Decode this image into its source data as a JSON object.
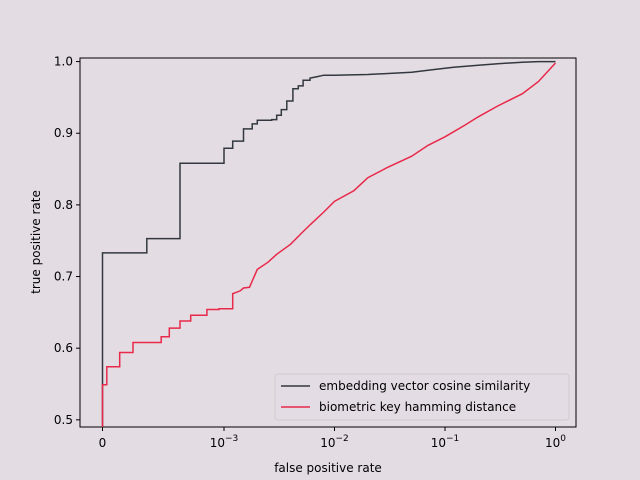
{
  "chart_data": {
    "type": "line",
    "title": "",
    "xlabel": "false positive rate",
    "ylabel": "true positive rate",
    "xscale": "symlog",
    "xlim": [
      -3e-05,
      1.7
    ],
    "ylim": [
      0.49,
      1.005
    ],
    "x_ticks": [
      {
        "value": 0,
        "label": "0"
      },
      {
        "value": 0.001,
        "label": "10",
        "exp": "−3"
      },
      {
        "value": 0.01,
        "label": "10",
        "exp": "−2"
      },
      {
        "value": 0.1,
        "label": "10",
        "exp": "−1"
      },
      {
        "value": 1,
        "label": "10",
        "exp": "0"
      }
    ],
    "y_ticks": [
      {
        "value": 0.5,
        "label": "0.5"
      },
      {
        "value": 0.6,
        "label": "0.6"
      },
      {
        "value": 0.7,
        "label": "0.7"
      },
      {
        "value": 0.8,
        "label": "0.8"
      },
      {
        "value": 0.9,
        "label": "0.9"
      },
      {
        "value": 1.0,
        "label": "1.0"
      }
    ],
    "grid": false,
    "legend_position": "lower-right",
    "series": [
      {
        "name": "embedding vector cosine similarity",
        "color": "#333840",
        "x": [
          0,
          0,
          0.0002,
          0.0002,
          0.0004,
          0.0004,
          0.001,
          0.001,
          0.0012,
          0.0012,
          0.0015,
          0.0015,
          0.0018,
          0.0018,
          0.002,
          0.002,
          0.0027,
          0.0027,
          0.003,
          0.003,
          0.0033,
          0.0033,
          0.0037,
          0.0037,
          0.0042,
          0.0042,
          0.0047,
          0.0047,
          0.0052,
          0.0052,
          0.006,
          0.006,
          0.007,
          0.008,
          0.01,
          0.02,
          0.05,
          0.08,
          0.12,
          0.2,
          0.3,
          0.5,
          0.7,
          1.0
        ],
        "y": [
          0.49,
          0.733,
          0.733,
          0.753,
          0.753,
          0.858,
          0.858,
          0.879,
          0.879,
          0.889,
          0.889,
          0.906,
          0.906,
          0.913,
          0.913,
          0.918,
          0.918,
          0.919,
          0.919,
          0.925,
          0.925,
          0.933,
          0.933,
          0.945,
          0.945,
          0.962,
          0.962,
          0.966,
          0.966,
          0.974,
          0.974,
          0.977,
          0.979,
          0.981,
          0.981,
          0.982,
          0.985,
          0.989,
          0.992,
          0.995,
          0.997,
          0.999,
          1.0,
          1.0
        ]
      },
      {
        "name": "biometric key hamming distance",
        "color": "#e8294a",
        "x": [
          0,
          0,
          2e-05,
          2e-05,
          8e-05,
          8e-05,
          0.00015,
          0.00015,
          0.00027,
          0.00027,
          0.00032,
          0.00032,
          0.0004,
          0.0004,
          0.0005,
          0.0005,
          0.0007,
          0.0007,
          0.0009,
          0.0009,
          0.0012,
          0.0012,
          0.0014,
          0.0015,
          0.0017,
          0.002,
          0.0025,
          0.003,
          0.004,
          0.005,
          0.006,
          0.008,
          0.01,
          0.015,
          0.02,
          0.03,
          0.05,
          0.07,
          0.1,
          0.15,
          0.2,
          0.3,
          0.5,
          0.7,
          1.0
        ],
        "y": [
          0.49,
          0.549,
          0.549,
          0.574,
          0.574,
          0.594,
          0.594,
          0.608,
          0.608,
          0.616,
          0.616,
          0.628,
          0.628,
          0.638,
          0.638,
          0.646,
          0.646,
          0.654,
          0.654,
          0.655,
          0.655,
          0.676,
          0.68,
          0.684,
          0.685,
          0.71,
          0.72,
          0.731,
          0.745,
          0.76,
          0.772,
          0.79,
          0.805,
          0.82,
          0.838,
          0.852,
          0.868,
          0.883,
          0.895,
          0.911,
          0.923,
          0.938,
          0.955,
          0.972,
          0.998
        ]
      }
    ]
  }
}
